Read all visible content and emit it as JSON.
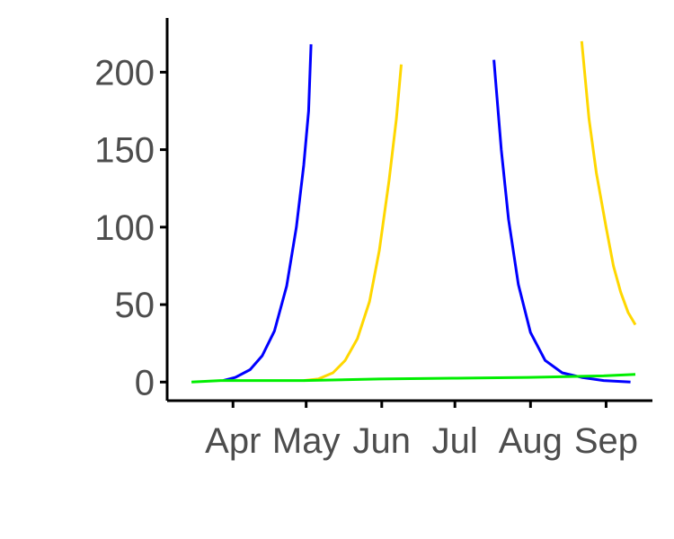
{
  "chart_data": {
    "type": "line",
    "title": "",
    "xlabel": "",
    "ylabel": "",
    "x_ticks": [
      "Apr",
      "May",
      "Jun",
      "Jul",
      "Aug",
      "Sep"
    ],
    "y_ticks": [
      "0",
      "50",
      "100",
      "150",
      "200"
    ],
    "xlim": [
      "2021-03-05",
      "2021-09-20"
    ],
    "ylim": [
      -12,
      235
    ],
    "grid": false,
    "legend": "none",
    "series": [
      {
        "color": "#0000ff",
        "segments": [
          [
            [
              "2021-03-28",
              1
            ],
            [
              "2021-04-02",
              3
            ],
            [
              "2021-04-08",
              8
            ],
            [
              "2021-04-13",
              17
            ],
            [
              "2021-04-18",
              33
            ],
            [
              "2021-04-23",
              62
            ],
            [
              "2021-04-27",
              100
            ],
            [
              "2021-04-30",
              140
            ],
            [
              "2021-05-02",
              175
            ],
            [
              "2021-05-03",
              218
            ]
          ],
          [
            [
              "2021-07-17",
              208
            ],
            [
              "2021-07-20",
              150
            ],
            [
              "2021-07-23",
              105
            ],
            [
              "2021-07-27",
              63
            ],
            [
              "2021-08-01",
              32
            ],
            [
              "2021-08-07",
              14
            ],
            [
              "2021-08-14",
              6
            ],
            [
              "2021-08-22",
              3
            ],
            [
              "2021-08-31",
              1
            ],
            [
              "2021-09-11",
              0
            ]
          ]
        ]
      },
      {
        "color": "#ffd700",
        "segments": [
          [
            [
              "2021-04-30",
              1
            ],
            [
              "2021-05-06",
              2
            ],
            [
              "2021-05-12",
              6
            ],
            [
              "2021-05-17",
              14
            ],
            [
              "2021-05-22",
              28
            ],
            [
              "2021-05-27",
              52
            ],
            [
              "2021-05-31",
              85
            ],
            [
              "2021-06-04",
              130
            ],
            [
              "2021-06-07",
              170
            ],
            [
              "2021-06-09",
              205
            ]
          ],
          [
            [
              "2021-08-22",
              220
            ],
            [
              "2021-08-25",
              170
            ],
            [
              "2021-08-28",
              135
            ],
            [
              "2021-09-01",
              100
            ],
            [
              "2021-09-04",
              75
            ],
            [
              "2021-09-07",
              58
            ],
            [
              "2021-09-10",
              45
            ],
            [
              "2021-09-13",
              37
            ]
          ]
        ]
      },
      {
        "color": "#00ee00",
        "segments": [
          [
            [
              "2021-03-15",
              0
            ],
            [
              "2021-03-27",
              1
            ],
            [
              "2021-04-30",
              1
            ],
            [
              "2021-05-31",
              2
            ],
            [
              "2021-06-30",
              2.5
            ],
            [
              "2021-07-31",
              3
            ],
            [
              "2021-08-31",
              4
            ],
            [
              "2021-09-13",
              5
            ]
          ]
        ]
      }
    ]
  }
}
